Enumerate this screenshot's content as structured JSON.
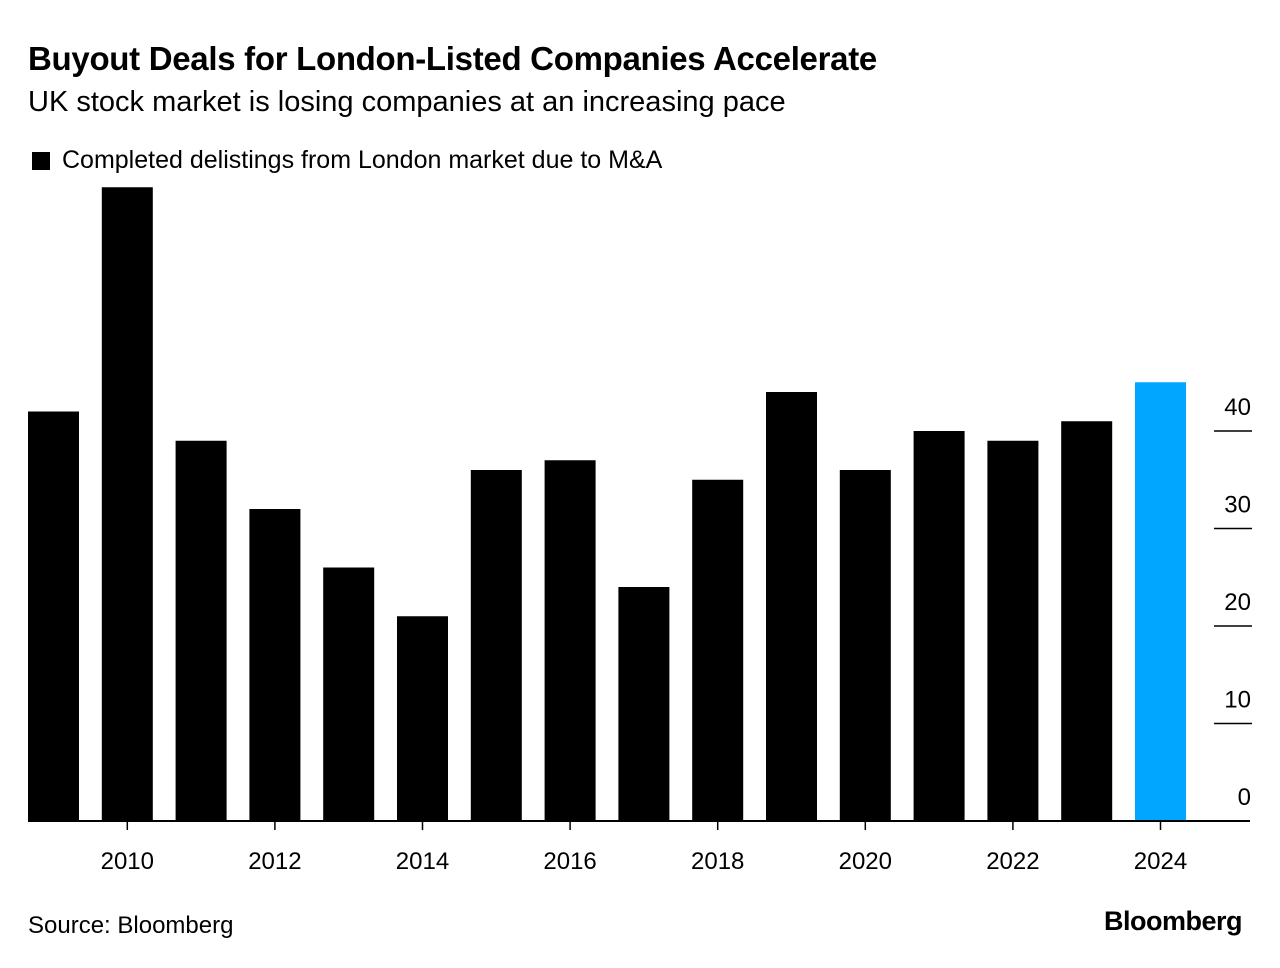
{
  "chart_data": {
    "type": "bar",
    "title": "Buyout Deals for London-Listed Companies Accelerate",
    "subtitle": "UK stock market is losing companies at an increasing pace",
    "legend": [
      "Completed delistings from London market due to M&A"
    ],
    "legend_placement": "top-left",
    "categories": [
      "2009",
      "2010",
      "2011",
      "2012",
      "2013",
      "2014",
      "2015",
      "2016",
      "2017",
      "2018",
      "2019",
      "2020",
      "2021",
      "2022",
      "2023",
      "2024"
    ],
    "values": [
      42,
      65,
      39,
      32,
      26,
      21,
      36,
      37,
      24,
      35,
      44,
      36,
      40,
      39,
      41,
      45
    ],
    "x_tick_labels": [
      "2010",
      "2012",
      "2014",
      "2016",
      "2018",
      "2020",
      "2022",
      "2024"
    ],
    "y_ticks": [
      0,
      10,
      20,
      30,
      40
    ],
    "ylim": [
      0,
      65
    ],
    "y_axis_position": "right",
    "highlight_category": "2024",
    "colors": {
      "bar": "#000000",
      "highlight": "#00a6ff"
    },
    "xlabel": "",
    "ylabel": ""
  },
  "source": "Source: Bloomberg",
  "brand": "Bloomberg"
}
